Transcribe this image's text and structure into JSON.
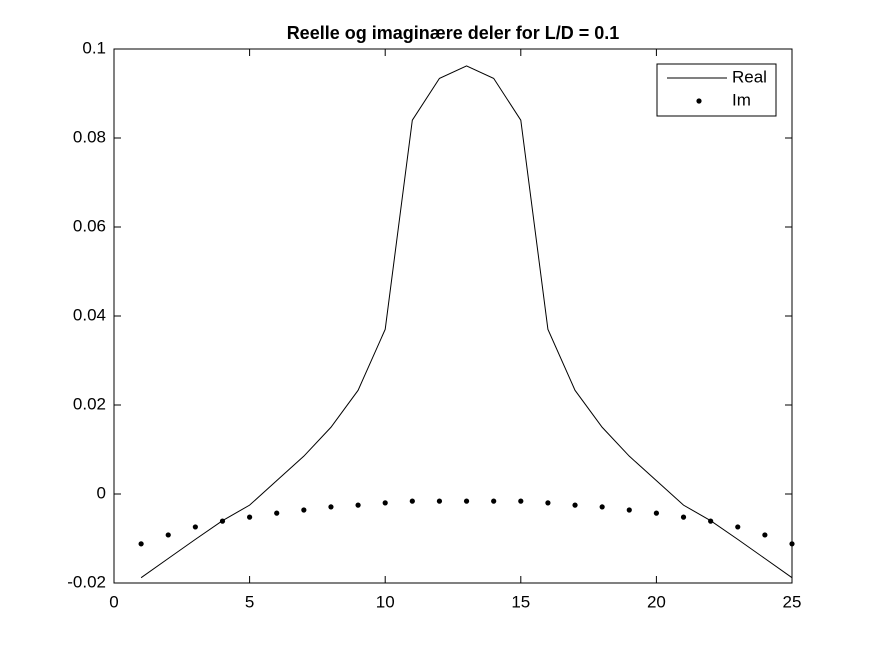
{
  "chart_data": {
    "type": "line",
    "title": "Reelle og imaginære deler for L/D = 0.1",
    "x": [
      1,
      2,
      3,
      4,
      5,
      6,
      7,
      8,
      9,
      10,
      11,
      12,
      13,
      14,
      15,
      16,
      17,
      18,
      19,
      20,
      21,
      22,
      23,
      24,
      25
    ],
    "series": [
      {
        "name": "Real",
        "color": "#000000",
        "style": "line",
        "values": [
          -0.0188,
          -0.0145,
          -0.0102,
          -0.006,
          -0.0025,
          0.003,
          0.0085,
          0.015,
          0.0233,
          0.037,
          0.084,
          0.0934,
          0.0962,
          0.0934,
          0.084,
          0.037,
          0.0233,
          0.015,
          0.0085,
          0.003,
          -0.0025,
          -0.006,
          -0.0102,
          -0.0145,
          -0.0188
        ]
      },
      {
        "name": "Im",
        "color": "#000000",
        "style": "dots",
        "values": [
          -0.0112,
          -0.0092,
          -0.0074,
          -0.0061,
          -0.0052,
          -0.0043,
          -0.0036,
          -0.0029,
          -0.0025,
          -0.002,
          -0.0016,
          -0.0016,
          -0.0016,
          -0.0016,
          -0.0016,
          -0.002,
          -0.0025,
          -0.0029,
          -0.0036,
          -0.0043,
          -0.0052,
          -0.0061,
          -0.0074,
          -0.0092,
          -0.0112
        ]
      }
    ],
    "xlim": [
      0,
      25
    ],
    "xticks": [
      0,
      5,
      10,
      15,
      20,
      25
    ],
    "ylim": [
      -0.02,
      0.1
    ],
    "yticks": [
      -0.02,
      0,
      0.02,
      0.04,
      0.06,
      0.08,
      0.1
    ],
    "legend": "upper right"
  }
}
